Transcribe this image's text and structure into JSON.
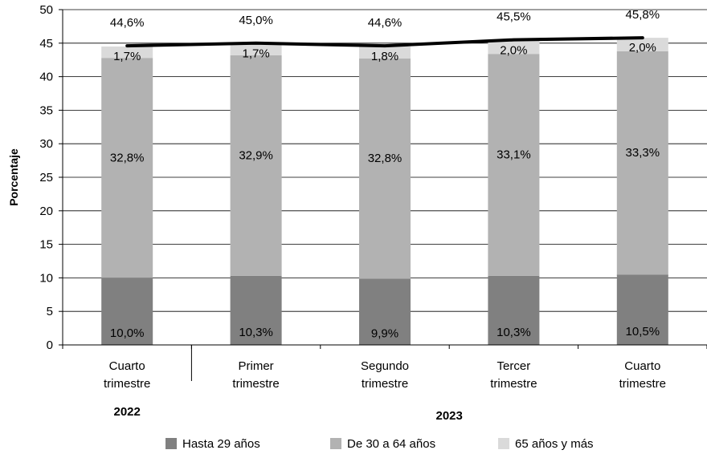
{
  "chart_data": {
    "type": "bar",
    "stacked": true,
    "ylabel": "Porcentaje",
    "ylim": [
      0,
      50
    ],
    "yticks": [
      0,
      5,
      10,
      15,
      20,
      25,
      30,
      35,
      40,
      45,
      50
    ],
    "grid": true,
    "legend_position": "bottom",
    "categories": [
      [
        "Cuarto",
        "trimestre"
      ],
      [
        "Primer",
        "trimestre"
      ],
      [
        "Segundo",
        "trimestre"
      ],
      [
        "Tercer",
        "trimestre"
      ],
      [
        "Cuarto",
        "trimestre"
      ]
    ],
    "groups": [
      {
        "label": "2022",
        "span": [
          0,
          0
        ]
      },
      {
        "label": "2023",
        "span": [
          1,
          4
        ]
      }
    ],
    "series": [
      {
        "name": "Hasta 29 años",
        "color": "#808080",
        "values": [
          10.0,
          10.3,
          9.9,
          10.3,
          10.5
        ],
        "labels": [
          "10,0%",
          "10,3%",
          "9,9%",
          "10,3%",
          "10,5%"
        ]
      },
      {
        "name": "De 30 a 64 años",
        "color": "#b2b2b2",
        "values": [
          32.8,
          32.9,
          32.8,
          33.1,
          33.3
        ],
        "labels": [
          "32,8%",
          "32,9%",
          "32,8%",
          "33,1%",
          "33,3%"
        ]
      },
      {
        "name": "65 años y más",
        "color": "#dadada",
        "values": [
          1.7,
          1.7,
          1.8,
          2.0,
          2.0
        ],
        "labels": [
          "1,7%",
          "1,7%",
          "1,8%",
          "2,0%",
          "2,0%"
        ]
      }
    ],
    "total_line": {
      "color": "#000000",
      "values": [
        44.6,
        45.0,
        44.6,
        45.5,
        45.8
      ],
      "labels": [
        "44,6%",
        "45,0%",
        "44,6%",
        "45,5%",
        "45,8%"
      ]
    }
  }
}
